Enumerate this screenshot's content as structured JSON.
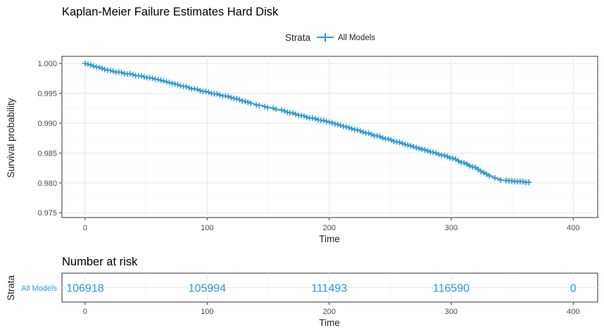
{
  "chart_data": [
    {
      "type": "line",
      "title": "Kaplan-Meier Failure Estimates Hard Disk",
      "xlabel": "Time",
      "ylabel": "Survival probability",
      "xlim": [
        -19,
        420
      ],
      "ylim": [
        0.9742,
        1.0012
      ],
      "xticks": [
        0,
        100,
        200,
        300,
        400
      ],
      "yticks": [
        0.975,
        0.98,
        0.985,
        0.99,
        0.995,
        1.0
      ],
      "ytick_labels": [
        "0.975",
        "0.980",
        "0.985",
        "0.990",
        "0.995",
        "1.000"
      ],
      "grid": true,
      "legend": {
        "title": "Strata",
        "placement": "top-center"
      },
      "series": [
        {
          "name": "All Models",
          "color": "#2b9bd8",
          "ci_color": "#d9d9d9",
          "x": [
            0,
            20,
            40,
            60,
            80,
            100,
            120,
            140,
            160,
            180,
            200,
            220,
            240,
            260,
            280,
            300,
            320,
            330,
            340,
            350,
            365
          ],
          "y": [
            1.0,
            0.9988,
            0.9981,
            0.9973,
            0.9962,
            0.9952,
            0.9943,
            0.9931,
            0.9922,
            0.9911,
            0.9902,
            0.989,
            0.9878,
            0.9866,
            0.9854,
            0.9842,
            0.9825,
            0.9813,
            0.9805,
            0.9803,
            0.9801
          ],
          "ci_half_width": [
            0.0,
            0.0001,
            0.0001,
            0.0001,
            0.00015,
            0.0002,
            0.0002,
            0.0002,
            0.00025,
            0.0002,
            0.00025,
            0.0003,
            0.0003,
            0.0003,
            0.00035,
            0.00035,
            0.0004,
            0.0004,
            0.00045,
            0.0005,
            0.0005
          ]
        }
      ]
    },
    {
      "type": "table",
      "title": "Number at risk",
      "xlabel": "Time",
      "ylabel": "Strata",
      "xlim": [
        -19,
        420
      ],
      "xticks": [
        0,
        100,
        200,
        300,
        400
      ],
      "rows": [
        {
          "label": "All Models",
          "color": "#2b9bd8",
          "x": [
            0,
            100,
            200,
            300,
            400
          ],
          "values": [
            "106918",
            "105994",
            "111493",
            "116590",
            "0"
          ]
        }
      ]
    }
  ]
}
